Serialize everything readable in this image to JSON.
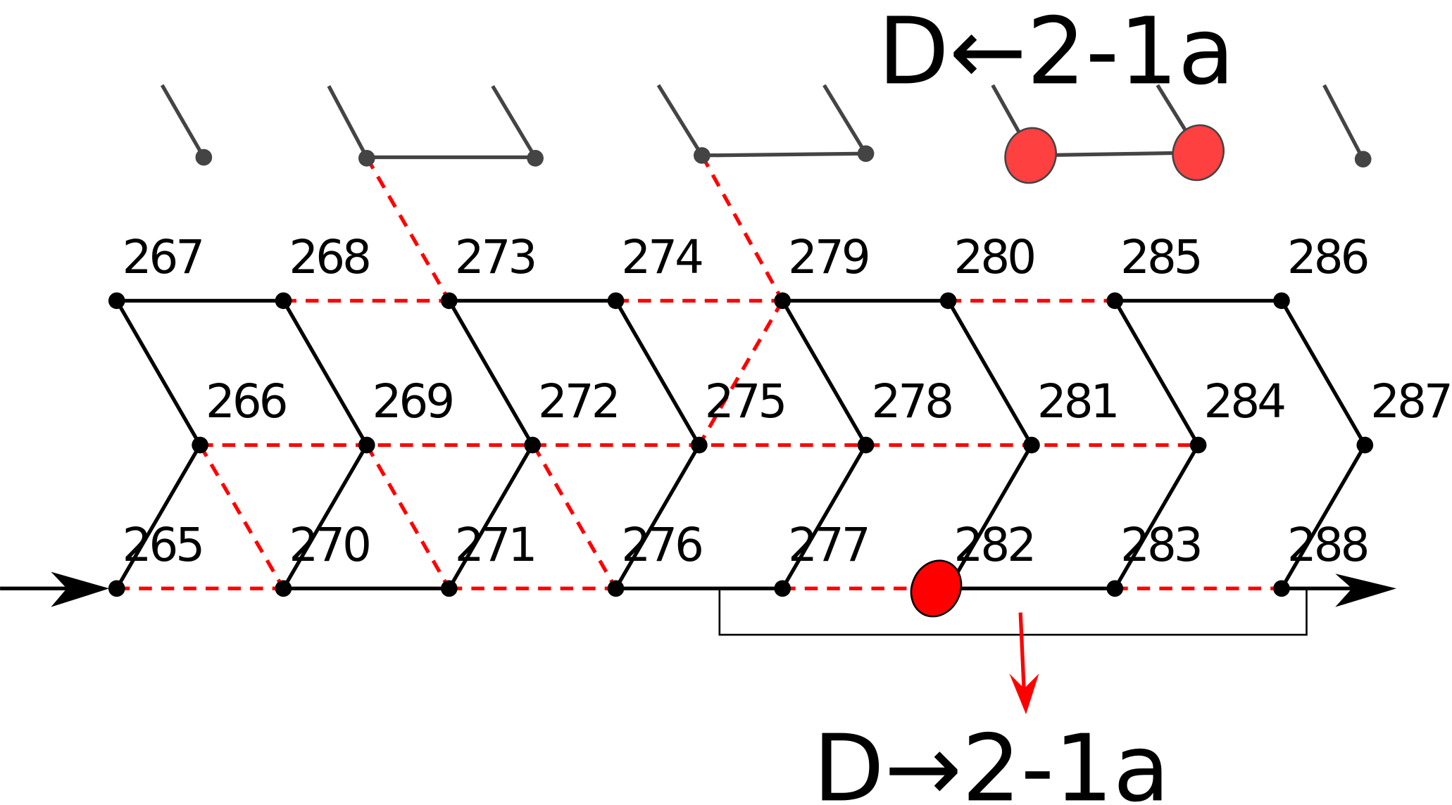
{
  "diagram": {
    "top_label": "D←2-1a",
    "bottom_label": "D→2-1a",
    "rows": {
      "top": [
        "267",
        "268",
        "273",
        "274",
        "279",
        "280",
        "285",
        "286"
      ],
      "middle": [
        "266",
        "269",
        "272",
        "275",
        "278",
        "281",
        "284",
        "287"
      ],
      "bottom": [
        "265",
        "270",
        "271",
        "276",
        "277",
        "282",
        "283",
        "288"
      ]
    },
    "highlighted_node": "282",
    "colors": {
      "highlight": "#ff0000",
      "highlight_top": "#ff4040",
      "solid": "#000000",
      "dashed": "#ff0000"
    }
  }
}
